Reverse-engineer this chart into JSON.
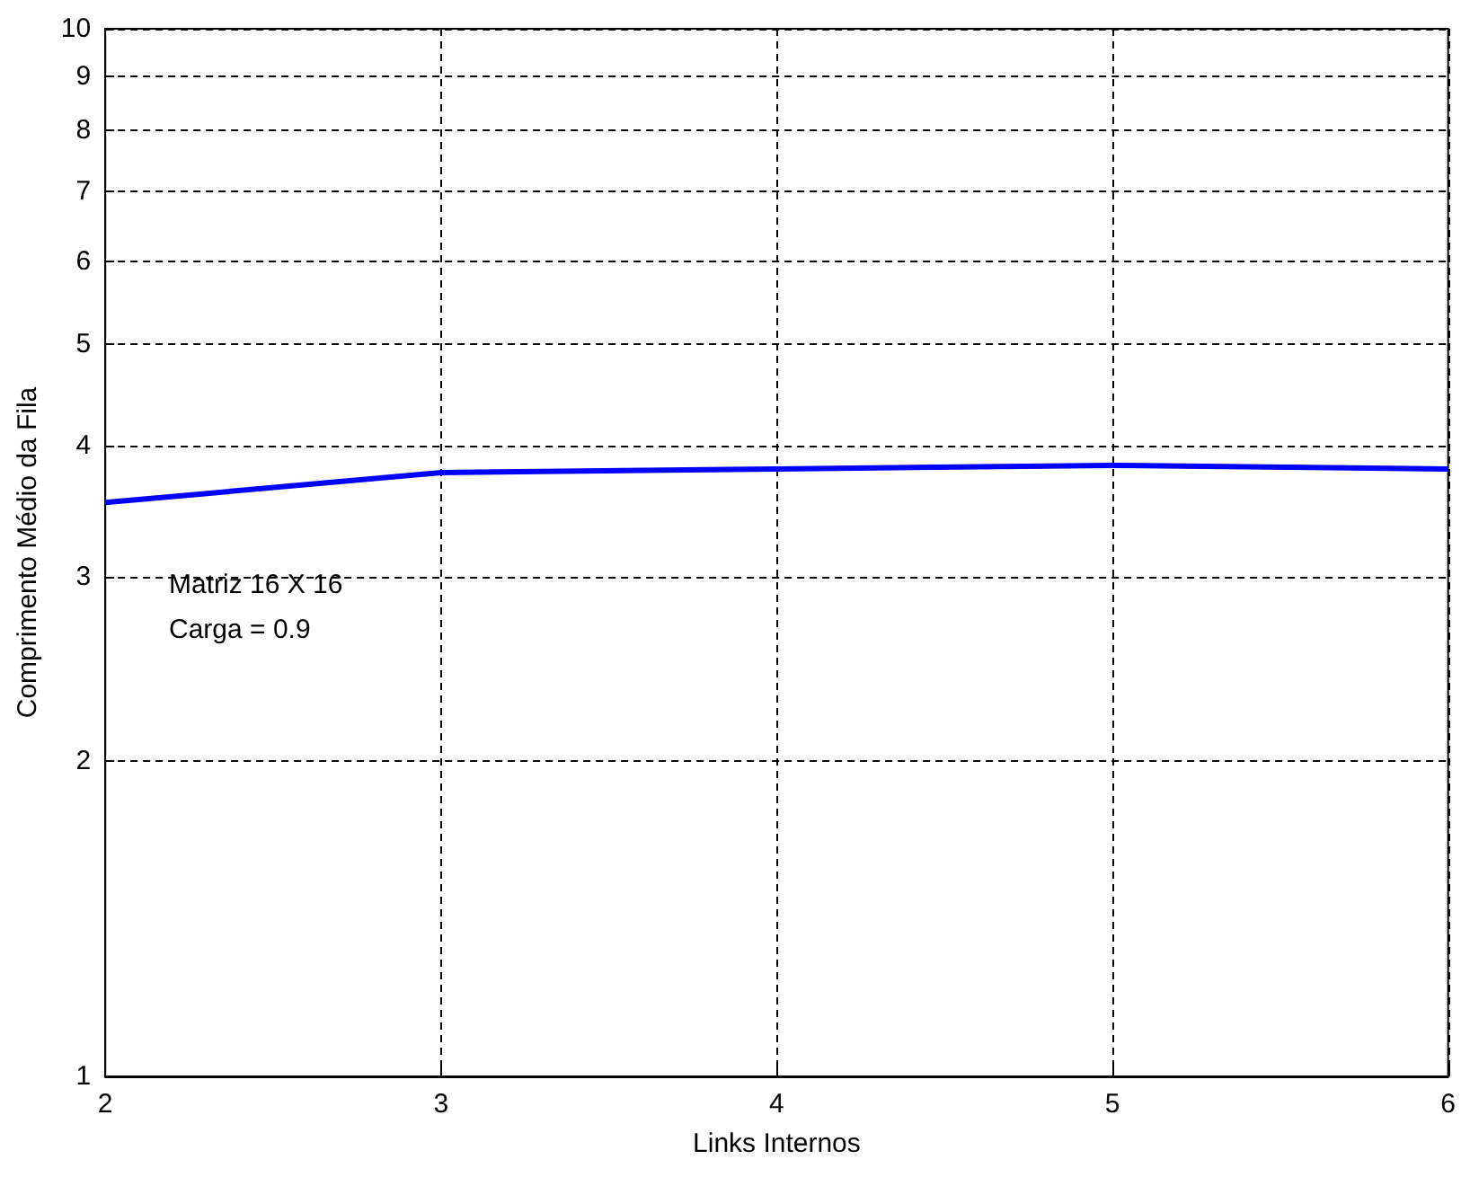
{
  "chart_data": {
    "type": "line",
    "xlabel": "Links Internos",
    "ylabel": "Comprimento Médio da Fila",
    "x": [
      2,
      3,
      4,
      5,
      6
    ],
    "series": [
      {
        "color": "#0000ff",
        "values": [
          3.53,
          3.77,
          3.8,
          3.83,
          3.8
        ]
      }
    ],
    "xlim": [
      2,
      6
    ],
    "xticks": [
      2,
      3,
      4,
      5,
      6
    ],
    "ylim": [
      1,
      10
    ],
    "yticks": [
      1,
      2,
      3,
      4,
      5,
      6,
      7,
      8,
      9,
      10
    ],
    "log": "y",
    "grid": true,
    "annotations": [
      "Matriz 16 X 16",
      "Carga = 0.9"
    ]
  }
}
